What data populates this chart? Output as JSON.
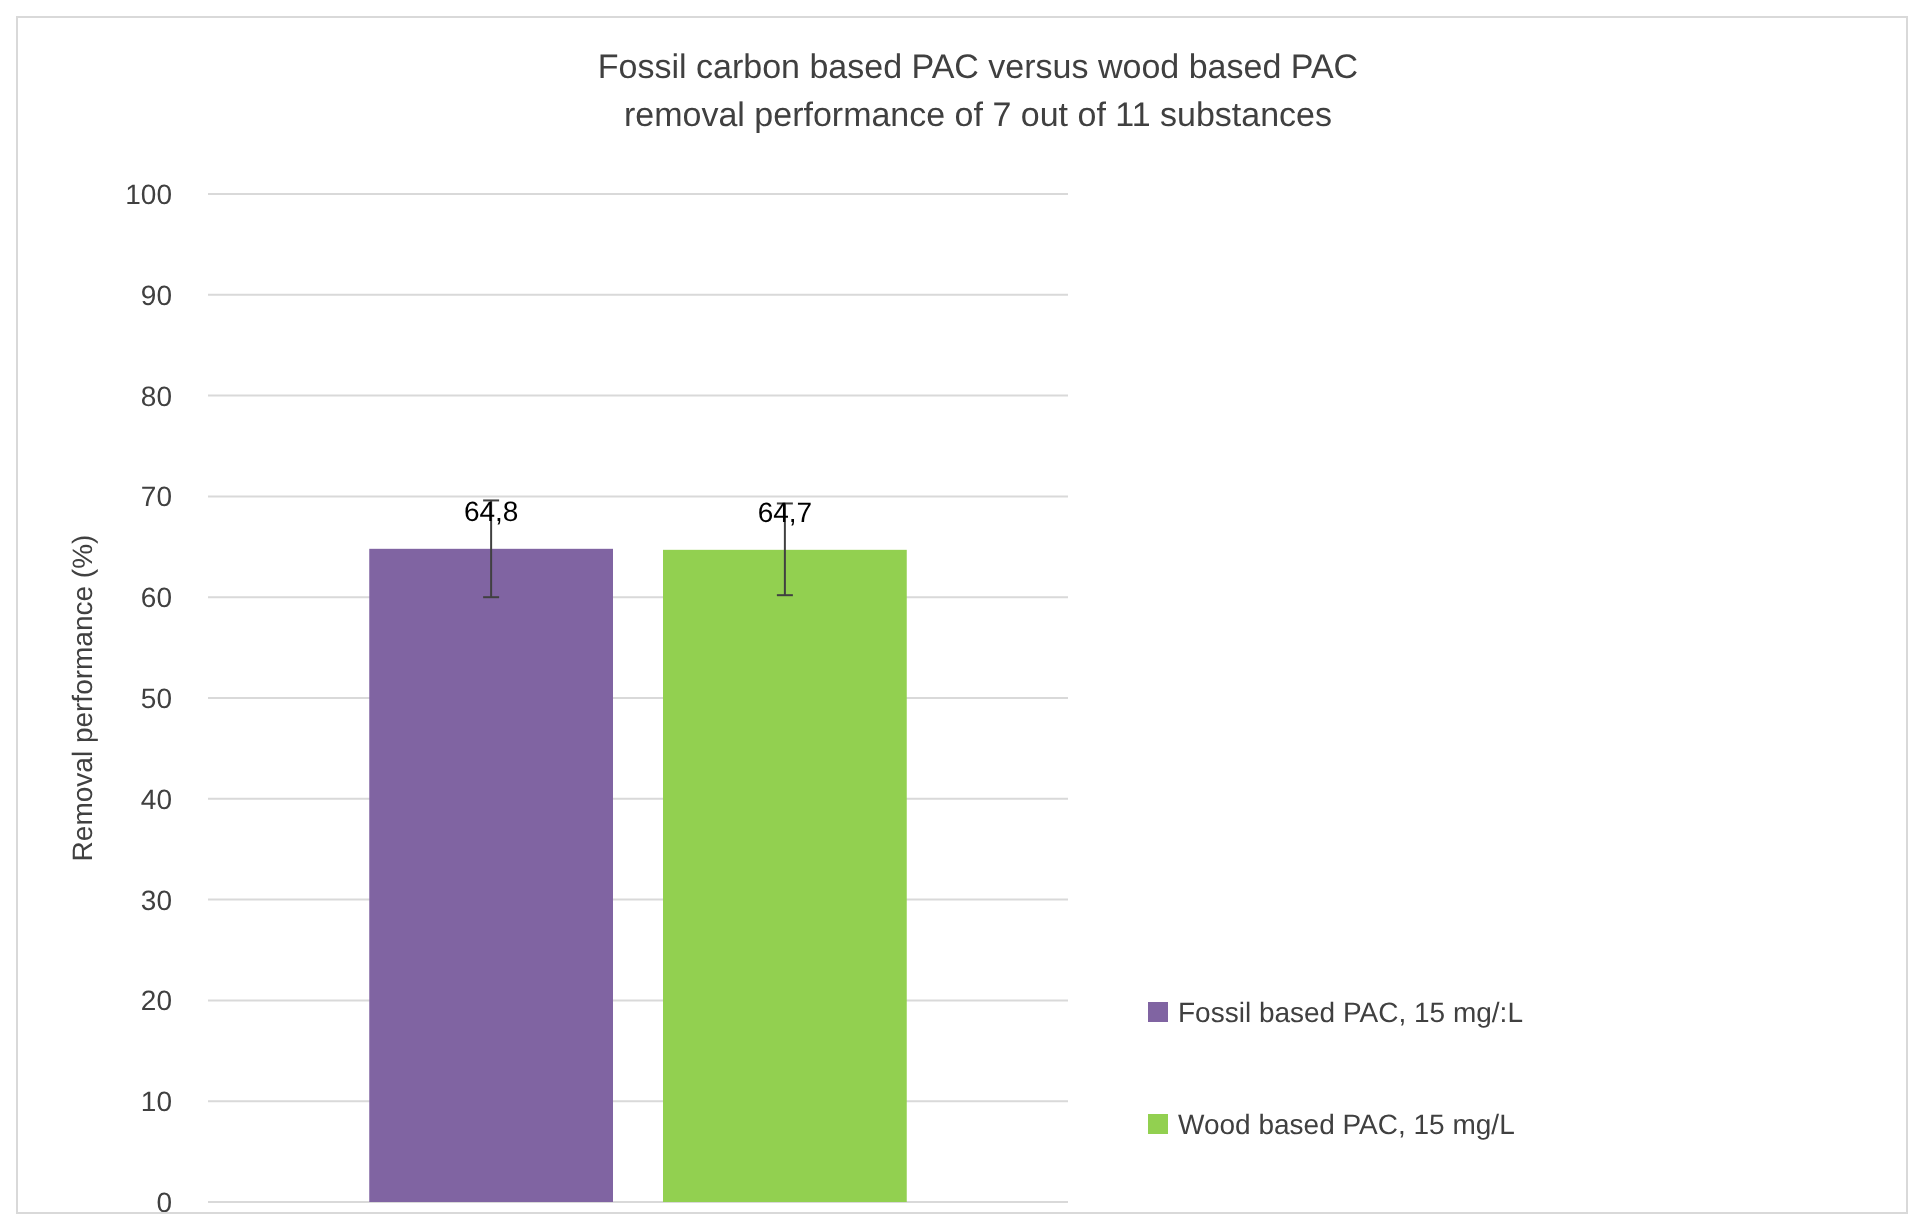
{
  "chart_data": {
    "type": "bar",
    "title": "Fossil carbon based PAC versus wood based PAC\nremoval performance of 7 out of 11 substances",
    "ylabel": "Removal performance (%)",
    "categories": [
      null
    ],
    "series": [
      {
        "name": "Fossil based PAC, 15 mg/:L",
        "color": "#8064a2",
        "values": [
          64.8
        ],
        "errors": [
          [
            60,
            69.6
          ]
        ],
        "value_labels": [
          "64,8"
        ]
      },
      {
        "name": "Wood based PAC, 15 mg/L",
        "color": "#92d050",
        "values": [
          64.7
        ],
        "errors": [
          [
            60.2,
            69.3
          ]
        ],
        "value_labels": [
          "64,7"
        ]
      }
    ],
    "ylim": [
      0,
      100
    ],
    "yticks": [
      0,
      10,
      20,
      30,
      40,
      50,
      60,
      70,
      80,
      90,
      100
    ],
    "grid": "y",
    "legend": "right"
  }
}
